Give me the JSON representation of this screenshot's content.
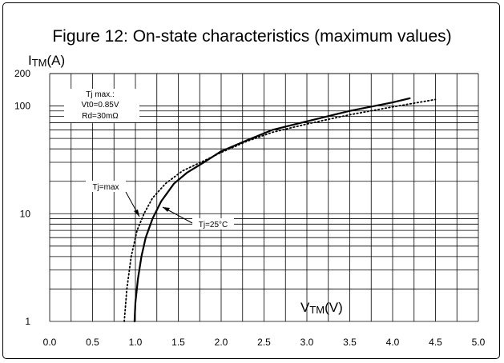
{
  "figure_title": "Figure 12: On-state characteristics (maximum values)",
  "chart_data": {
    "type": "line",
    "title": "Figure 12: On-state characteristics (maximum values)",
    "ylabel": {
      "main": "I",
      "sub": "TM",
      "unit": "(A)"
    },
    "xlabel": {
      "main": "V",
      "sub": "TM",
      "unit": "(V)"
    },
    "xlim": [
      0.0,
      5.0
    ],
    "ylim": [
      1,
      200
    ],
    "yscale": "log",
    "grid": true,
    "xticks": [
      "0.0",
      "0.5",
      "1.0",
      "1.5",
      "2.0",
      "2.5",
      "3.0",
      "3.5",
      "4.0",
      "4.5",
      "5.0"
    ],
    "yticks": [
      "1",
      "10",
      "100",
      "200"
    ],
    "series": [
      {
        "name": "Tj=25°C",
        "style": "solid",
        "color": "#000000",
        "points": [
          [
            0.99,
            1
          ],
          [
            1.0,
            1.5
          ],
          [
            1.03,
            2.5
          ],
          [
            1.07,
            4
          ],
          [
            1.12,
            6
          ],
          [
            1.2,
            9
          ],
          [
            1.3,
            13
          ],
          [
            1.45,
            19
          ],
          [
            1.6,
            24
          ],
          [
            1.8,
            30
          ],
          [
            2.0,
            38
          ],
          [
            2.3,
            48
          ],
          [
            2.6,
            60
          ],
          [
            3.0,
            72
          ],
          [
            3.5,
            90
          ],
          [
            4.0,
            108
          ],
          [
            4.2,
            118
          ]
        ]
      },
      {
        "name": "Tj=max",
        "style": "dotted",
        "color": "#000000",
        "points": [
          [
            0.87,
            1
          ],
          [
            0.9,
            2
          ],
          [
            0.95,
            4
          ],
          [
            1.02,
            7
          ],
          [
            1.1,
            10
          ],
          [
            1.2,
            14
          ],
          [
            1.35,
            19
          ],
          [
            1.55,
            25
          ],
          [
            1.8,
            31
          ],
          [
            2.0,
            37
          ],
          [
            2.3,
            47
          ],
          [
            2.6,
            57
          ],
          [
            3.0,
            68
          ],
          [
            3.5,
            83
          ],
          [
            4.0,
            98
          ],
          [
            4.5,
            115
          ]
        ]
      }
    ],
    "annotations": {
      "params": {
        "line1": "Tj max.:",
        "line2": "Vt0=0.85V",
        "line3": "Rd=30mΩ"
      },
      "tjmax_label": "Tj=max",
      "tj25_label": "Tj=25°C"
    }
  }
}
